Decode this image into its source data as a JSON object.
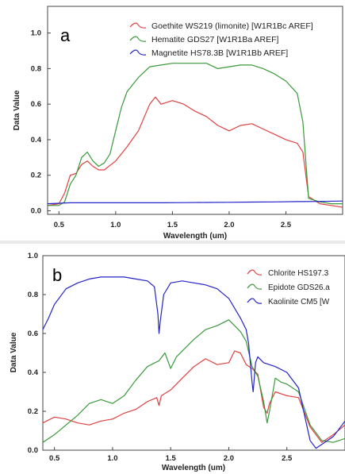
{
  "chart_data": [
    {
      "type": "line",
      "panel_label": "a",
      "xlabel": "Wavelength (um)",
      "ylabel": "Data Value",
      "xlim": [
        0.4,
        3.0
      ],
      "ylim": [
        -0.02,
        1.15
      ],
      "xticks": [
        0.5,
        1.0,
        1.5,
        2.0,
        2.5
      ],
      "xtick_labels": [
        "0.5",
        "1.0",
        "1.5",
        "2.0",
        "2.5"
      ],
      "yticks": [
        0.0,
        0.2,
        0.4,
        0.6,
        0.8,
        1.0
      ],
      "ytick_labels": [
        "0.0",
        "0.2",
        "0.4",
        "0.6",
        "0.8",
        "1.0"
      ],
      "grid": false,
      "legend_position": "top-right",
      "series": [
        {
          "name": "Goethite WS219 (limonite) [W1R1Bc AREF]",
          "color": "#e04040",
          "x": [
            0.4,
            0.5,
            0.55,
            0.6,
            0.65,
            0.7,
            0.75,
            0.8,
            0.85,
            0.9,
            1.0,
            1.1,
            1.2,
            1.3,
            1.35,
            1.4,
            1.5,
            1.6,
            1.7,
            1.8,
            1.9,
            2.0,
            2.1,
            2.2,
            2.3,
            2.4,
            2.5,
            2.6,
            2.65,
            2.7,
            2.8,
            2.9,
            3.0
          ],
          "y": [
            0.03,
            0.04,
            0.1,
            0.2,
            0.21,
            0.26,
            0.28,
            0.25,
            0.23,
            0.23,
            0.28,
            0.36,
            0.45,
            0.6,
            0.64,
            0.6,
            0.62,
            0.6,
            0.56,
            0.53,
            0.48,
            0.45,
            0.48,
            0.49,
            0.46,
            0.43,
            0.4,
            0.38,
            0.33,
            0.08,
            0.04,
            0.03,
            0.02
          ]
        },
        {
          "name": "Hematite GDS27 [W1R1Ba AREF]",
          "color": "#3a9a3a",
          "x": [
            0.4,
            0.5,
            0.55,
            0.6,
            0.65,
            0.7,
            0.75,
            0.8,
            0.85,
            0.9,
            0.95,
            1.0,
            1.05,
            1.1,
            1.2,
            1.3,
            1.4,
            1.5,
            1.6,
            1.7,
            1.8,
            1.9,
            2.0,
            2.1,
            2.2,
            2.3,
            2.4,
            2.5,
            2.6,
            2.65,
            2.7,
            2.8,
            2.9,
            3.0
          ],
          "y": [
            0.03,
            0.03,
            0.05,
            0.15,
            0.2,
            0.3,
            0.33,
            0.28,
            0.25,
            0.27,
            0.32,
            0.45,
            0.58,
            0.67,
            0.75,
            0.81,
            0.82,
            0.83,
            0.83,
            0.83,
            0.83,
            0.8,
            0.81,
            0.82,
            0.82,
            0.8,
            0.77,
            0.73,
            0.66,
            0.5,
            0.07,
            0.05,
            0.04,
            0.04
          ]
        },
        {
          "name": "Magnetite HS78.3B [W1R1Bb AREF]",
          "color": "#2323c8",
          "x": [
            0.4,
            0.6,
            0.8,
            1.0,
            1.2,
            1.4,
            1.6,
            1.8,
            2.0,
            2.2,
            2.4,
            2.6,
            2.8,
            3.0
          ],
          "y": [
            0.04,
            0.045,
            0.045,
            0.045,
            0.045,
            0.045,
            0.046,
            0.047,
            0.048,
            0.049,
            0.05,
            0.052,
            0.053,
            0.055
          ]
        }
      ]
    },
    {
      "type": "line",
      "panel_label": "b",
      "xlabel": "Wavelength (um)",
      "ylabel": "Data Value",
      "xlim": [
        0.4,
        3.0
      ],
      "ylim": [
        0.0,
        1.0
      ],
      "xticks": [
        0.5,
        1.0,
        1.5,
        2.0,
        2.5
      ],
      "xtick_labels": [
        "0.5",
        "1.0",
        "1.5",
        "2.0",
        "2.5"
      ],
      "yticks": [
        0.0,
        0.2,
        0.4,
        0.6,
        0.8,
        1.0
      ],
      "ytick_labels": [
        "0.0",
        "0.2",
        "0.4",
        "0.6",
        "0.8",
        "1.0"
      ],
      "grid": false,
      "legend_position": "top-right",
      "series": [
        {
          "name": "Chlorite HS197.3",
          "color": "#e04040",
          "x": [
            0.4,
            0.5,
            0.6,
            0.7,
            0.8,
            0.9,
            1.0,
            1.1,
            1.2,
            1.3,
            1.38,
            1.4,
            1.42,
            1.5,
            1.6,
            1.7,
            1.8,
            1.9,
            2.0,
            2.05,
            2.1,
            2.15,
            2.2,
            2.25,
            2.3,
            2.33,
            2.35,
            2.4,
            2.5,
            2.6,
            2.7,
            2.8,
            2.9,
            3.0
          ],
          "y": [
            0.14,
            0.17,
            0.16,
            0.14,
            0.13,
            0.15,
            0.16,
            0.19,
            0.21,
            0.25,
            0.27,
            0.23,
            0.28,
            0.31,
            0.37,
            0.43,
            0.47,
            0.44,
            0.45,
            0.51,
            0.5,
            0.44,
            0.42,
            0.39,
            0.22,
            0.19,
            0.24,
            0.3,
            0.28,
            0.27,
            0.12,
            0.04,
            0.08,
            0.13
          ]
        },
        {
          "name": "Epidote GDS26.a",
          "color": "#3a9a3a",
          "x": [
            0.4,
            0.5,
            0.6,
            0.7,
            0.8,
            0.9,
            1.0,
            1.1,
            1.2,
            1.3,
            1.4,
            1.45,
            1.5,
            1.55,
            1.6,
            1.7,
            1.8,
            1.9,
            2.0,
            2.1,
            2.15,
            2.2,
            2.25,
            2.3,
            2.33,
            2.35,
            2.4,
            2.45,
            2.5,
            2.6,
            2.7,
            2.8,
            2.9,
            3.0
          ],
          "y": [
            0.04,
            0.08,
            0.13,
            0.18,
            0.24,
            0.26,
            0.24,
            0.28,
            0.36,
            0.43,
            0.46,
            0.5,
            0.42,
            0.48,
            0.51,
            0.57,
            0.62,
            0.64,
            0.67,
            0.61,
            0.56,
            0.43,
            0.38,
            0.25,
            0.14,
            0.2,
            0.37,
            0.35,
            0.34,
            0.3,
            0.13,
            0.05,
            0.04,
            0.06
          ]
        },
        {
          "name": "Kaolinite CM5 [W",
          "color": "#2323c8",
          "x": [
            0.4,
            0.45,
            0.5,
            0.6,
            0.7,
            0.8,
            0.9,
            1.0,
            1.1,
            1.2,
            1.3,
            1.36,
            1.39,
            1.4,
            1.41,
            1.44,
            1.5,
            1.6,
            1.7,
            1.8,
            1.9,
            2.0,
            2.1,
            2.15,
            2.17,
            2.2,
            2.21,
            2.23,
            2.25,
            2.3,
            2.4,
            2.5,
            2.6,
            2.7,
            2.75,
            2.8,
            2.9,
            3.0
          ],
          "y": [
            0.62,
            0.68,
            0.75,
            0.83,
            0.86,
            0.88,
            0.89,
            0.89,
            0.89,
            0.88,
            0.87,
            0.84,
            0.7,
            0.6,
            0.66,
            0.8,
            0.86,
            0.87,
            0.86,
            0.85,
            0.83,
            0.78,
            0.68,
            0.62,
            0.55,
            0.35,
            0.3,
            0.45,
            0.48,
            0.45,
            0.43,
            0.4,
            0.32,
            0.05,
            0.01,
            0.03,
            0.07,
            0.15
          ]
        }
      ]
    }
  ]
}
